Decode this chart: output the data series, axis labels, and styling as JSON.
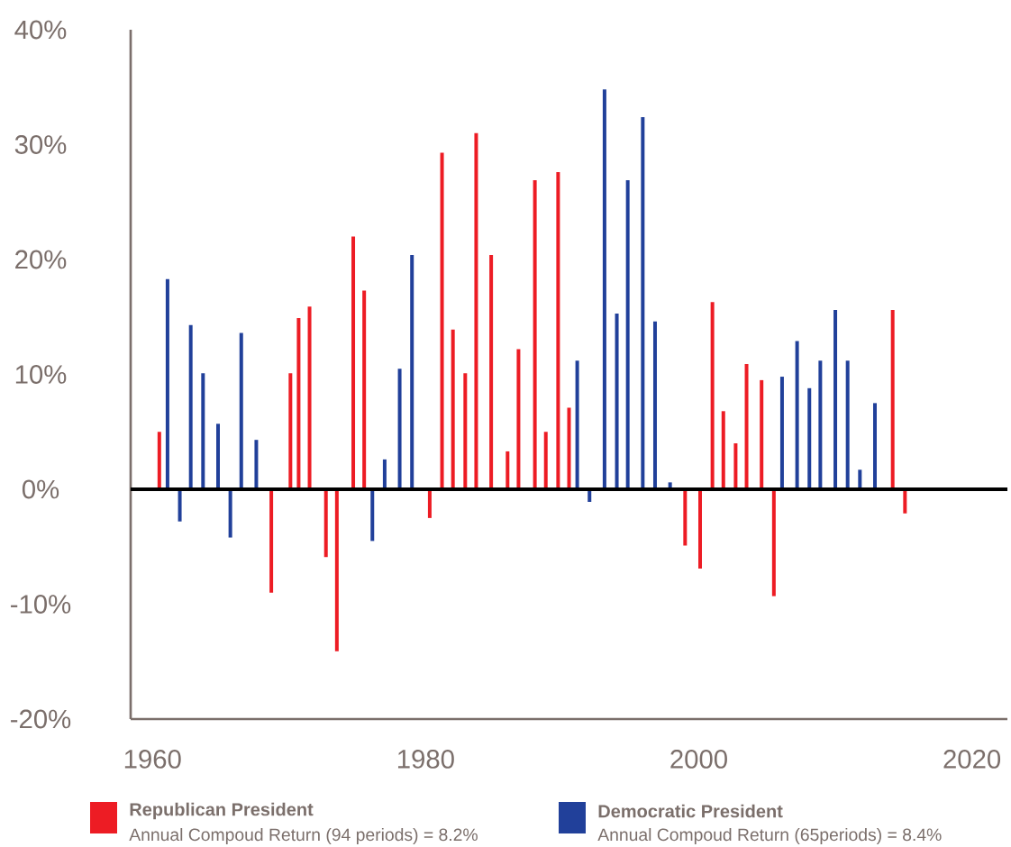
{
  "chart_data": {
    "type": "bar",
    "xlim": [
      1958.4,
      2022.6
    ],
    "ylim": [
      -20,
      40
    ],
    "xticks": [
      1960,
      1980,
      2000,
      2020
    ],
    "yticks": [
      {
        "value": -20,
        "label": "-20%"
      },
      {
        "value": -10,
        "label": "-10%"
      },
      {
        "value": 0,
        "label": "0%"
      },
      {
        "value": 10,
        "label": "10%"
      },
      {
        "value": 20,
        "label": "20%"
      },
      {
        "value": 30,
        "label": "30%"
      },
      {
        "value": 40,
        "label": "40%"
      }
    ],
    "series": [
      {
        "name": "Republican President",
        "color": "#ed1c24",
        "x": [
          1960.5,
          1968.7,
          1970.1,
          1970.7,
          1971.5,
          1972.7,
          1973.5,
          1974.7,
          1975.5,
          1980.3,
          1981.2,
          1982.0,
          1982.9,
          1983.7,
          1984.8,
          1986.0,
          1986.8,
          1988.0,
          1988.8,
          1989.7,
          1990.5,
          1999.0,
          2000.1,
          2001.0,
          2001.8,
          2002.7,
          2003.5,
          2004.6,
          2005.5,
          2014.2,
          2015.1
        ],
        "values": [
          5.0,
          -9.0,
          10.1,
          14.9,
          15.9,
          -5.9,
          -14.1,
          22.0,
          17.3,
          -2.5,
          29.3,
          13.9,
          10.1,
          31.0,
          20.4,
          3.3,
          12.2,
          26.9,
          5.0,
          27.6,
          7.1,
          -4.9,
          -6.9,
          16.3,
          6.8,
          4.0,
          10.9,
          9.5,
          -9.3,
          15.6,
          -2.1
        ]
      },
      {
        "name": "Democratic President",
        "color": "#21409a",
        "x": [
          1961.1,
          1962.0,
          1962.8,
          1963.7,
          1964.8,
          1965.7,
          1966.5,
          1967.6,
          1976.1,
          1977.0,
          1978.1,
          1979.0,
          1991.1,
          1992.0,
          1993.1,
          1994.0,
          1994.8,
          1995.9,
          1996.8,
          1997.9,
          2006.1,
          2007.2,
          2008.1,
          2008.9,
          2010.0,
          2010.9,
          2011.8,
          2012.9
        ],
        "values": [
          18.3,
          -2.8,
          14.3,
          10.1,
          5.7,
          -4.2,
          13.6,
          4.3,
          -4.5,
          2.6,
          10.5,
          20.4,
          11.2,
          -1.1,
          34.8,
          15.3,
          26.9,
          32.4,
          14.6,
          0.6,
          9.8,
          12.9,
          8.8,
          11.2,
          15.6,
          11.2,
          1.7,
          7.5
        ]
      }
    ],
    "ref_lines": [
      {
        "axis": "y",
        "value": 0,
        "color": "#000000"
      }
    ],
    "legend": "bottom",
    "annotations": [
      "Annual Compoud Return (94 periods) = 8.2%",
      "Annual Compoud Return (65periods) = 8.4%"
    ]
  }
}
